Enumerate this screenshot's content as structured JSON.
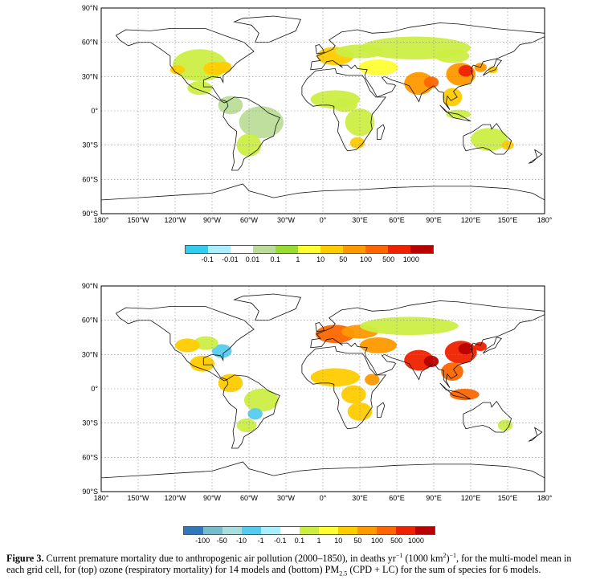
{
  "maps": [
    {
      "id": "top",
      "lat_labels": [
        "90°N",
        "60°N",
        "30°N",
        "0°",
        "30°S",
        "60°S",
        "90°S"
      ],
      "lon_labels": [
        "180°",
        "150°W",
        "120°W",
        "90°W",
        "60°W",
        "30°W",
        "0°",
        "30°E",
        "60°E",
        "90°E",
        "120°E",
        "150°E",
        "180°"
      ],
      "colorbar": {
        "colors": [
          "#33ccee",
          "#aaeeff",
          "#ffffff",
          "#bbdd99",
          "#99dd33",
          "#ffff33",
          "#ffcc00",
          "#ff9900",
          "#ff6600",
          "#ee2200",
          "#bb0000"
        ],
        "labels": [
          "-0.1",
          "-0.01",
          "0.01",
          "0.1",
          "1",
          "10",
          "50",
          "100",
          "500",
          "1000"
        ]
      }
    },
    {
      "id": "bottom",
      "lat_labels": [
        "90°N",
        "60°N",
        "30°N",
        "0°",
        "30°S",
        "60°S",
        "90°S"
      ],
      "lon_labels": [
        "180°",
        "150°W",
        "120°W",
        "90°W",
        "60°W",
        "30°W",
        "0°",
        "30°E",
        "60°E",
        "90°E",
        "120°E",
        "150°E",
        "180°"
      ],
      "colorbar": {
        "colors": [
          "#3377bb",
          "#77bbcc",
          "#aadddd",
          "#55ccee",
          "#aaeeff",
          "#ffffff",
          "#ccee44",
          "#ffff33",
          "#ffcc00",
          "#ff9900",
          "#ff6600",
          "#ee2200",
          "#bb0000"
        ],
        "labels": [
          "-100",
          "-50",
          "-10",
          "-1",
          "-0.1",
          "0.1",
          "1",
          "10",
          "50",
          "100",
          "500",
          "1000"
        ]
      }
    }
  ],
  "caption": {
    "label": "Figure 3.",
    "part1": " Current premature mortality due to anthropogenic air pollution (2000–1850), in deaths yr",
    "sup1": "−1",
    "part2": " (1000 km",
    "sup2": "2",
    "part3": ")",
    "sup3": "−1",
    "part4": ", for the multi-model mean in each grid cell, for (top) ozone (respiratory mortality) for 14 models and (bottom) PM",
    "sub1": "2.5",
    "part5": " (CPD + LC) for the sum of species for 6 models."
  },
  "colors": {
    "land_outline": "#111111",
    "grid": "#888888"
  }
}
